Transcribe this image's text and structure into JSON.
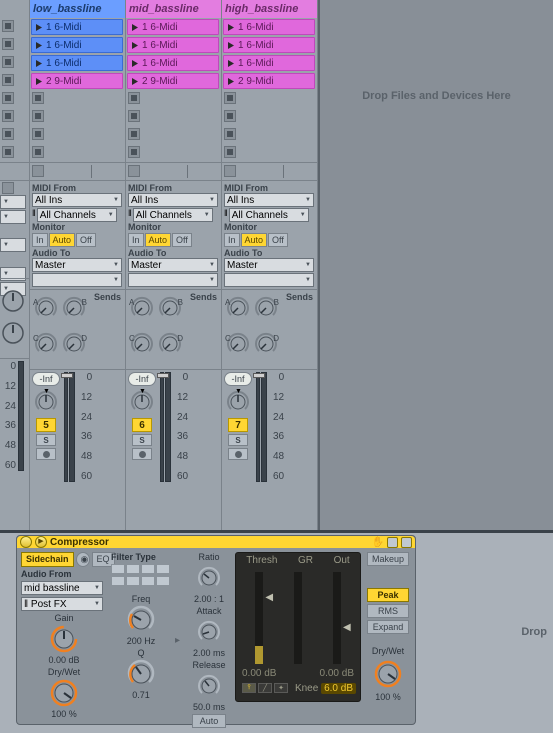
{
  "tracks": [
    {
      "name": "low_bassline",
      "color": "blue",
      "clips": [
        "1 6-Midi",
        "1 6-Midi",
        "1 6-Midi",
        "2 9-Midi"
      ]
    },
    {
      "name": "mid_bassline",
      "color": "mag",
      "clips": [
        "1 6-Midi",
        "1 6-Midi",
        "1 6-Midi",
        "2 9-Midi"
      ]
    },
    {
      "name": "high_bassline",
      "color": "mag",
      "clips": [
        "1 6-Midi",
        "1 6-Midi",
        "1 6-Midi",
        "2 9-Midi"
      ]
    }
  ],
  "io": {
    "midi_from": "MIDI From",
    "all_ins": "All Ins",
    "all_channels": "All Channels",
    "monitor": "Monitor",
    "in": "In",
    "auto": "Auto",
    "off": "Off",
    "audio_to": "Audio To",
    "master": "Master"
  },
  "sends_label": "Sends",
  "send_labels": [
    "A",
    "B",
    "C",
    "D"
  ],
  "mixer": {
    "inf": "-Inf",
    "s": "S",
    "scale": [
      "0",
      "12",
      "24",
      "36",
      "48",
      "60"
    ],
    "channels": [
      "5",
      "6",
      "7"
    ]
  },
  "drop1": "Drop Files and Devices Here",
  "drop2": "Drop",
  "compressor": {
    "title": "Compressor",
    "sidechain": "Sidechain",
    "eq": "EQ",
    "audio_from": "Audio From",
    "mid_bassline": "mid bassline",
    "post_fx": "Post FX",
    "filter_type": "Filter Type",
    "gain": "Gain",
    "gain_val": "0.00 dB",
    "drywet": "Dry/Wet",
    "drywet_val": "100 %",
    "freq": "Freq",
    "freq_val": "200 Hz",
    "q": "Q",
    "q_val": "0.71",
    "ratio": "Ratio",
    "ratio_val": "2.00 : 1",
    "attack": "Attack",
    "attack_val": "2.00 ms",
    "release": "Release",
    "release_val": "50.0 ms",
    "auto": "Auto",
    "thresh": "Thresh",
    "gr": "GR",
    "out": "Out",
    "db1": "0.00 dB",
    "db2": "0.00 dB",
    "knee": "Knee",
    "knee_val": "6.0 dB",
    "makeup": "Makeup",
    "peak": "Peak",
    "rms": "RMS",
    "expand": "Expand"
  }
}
